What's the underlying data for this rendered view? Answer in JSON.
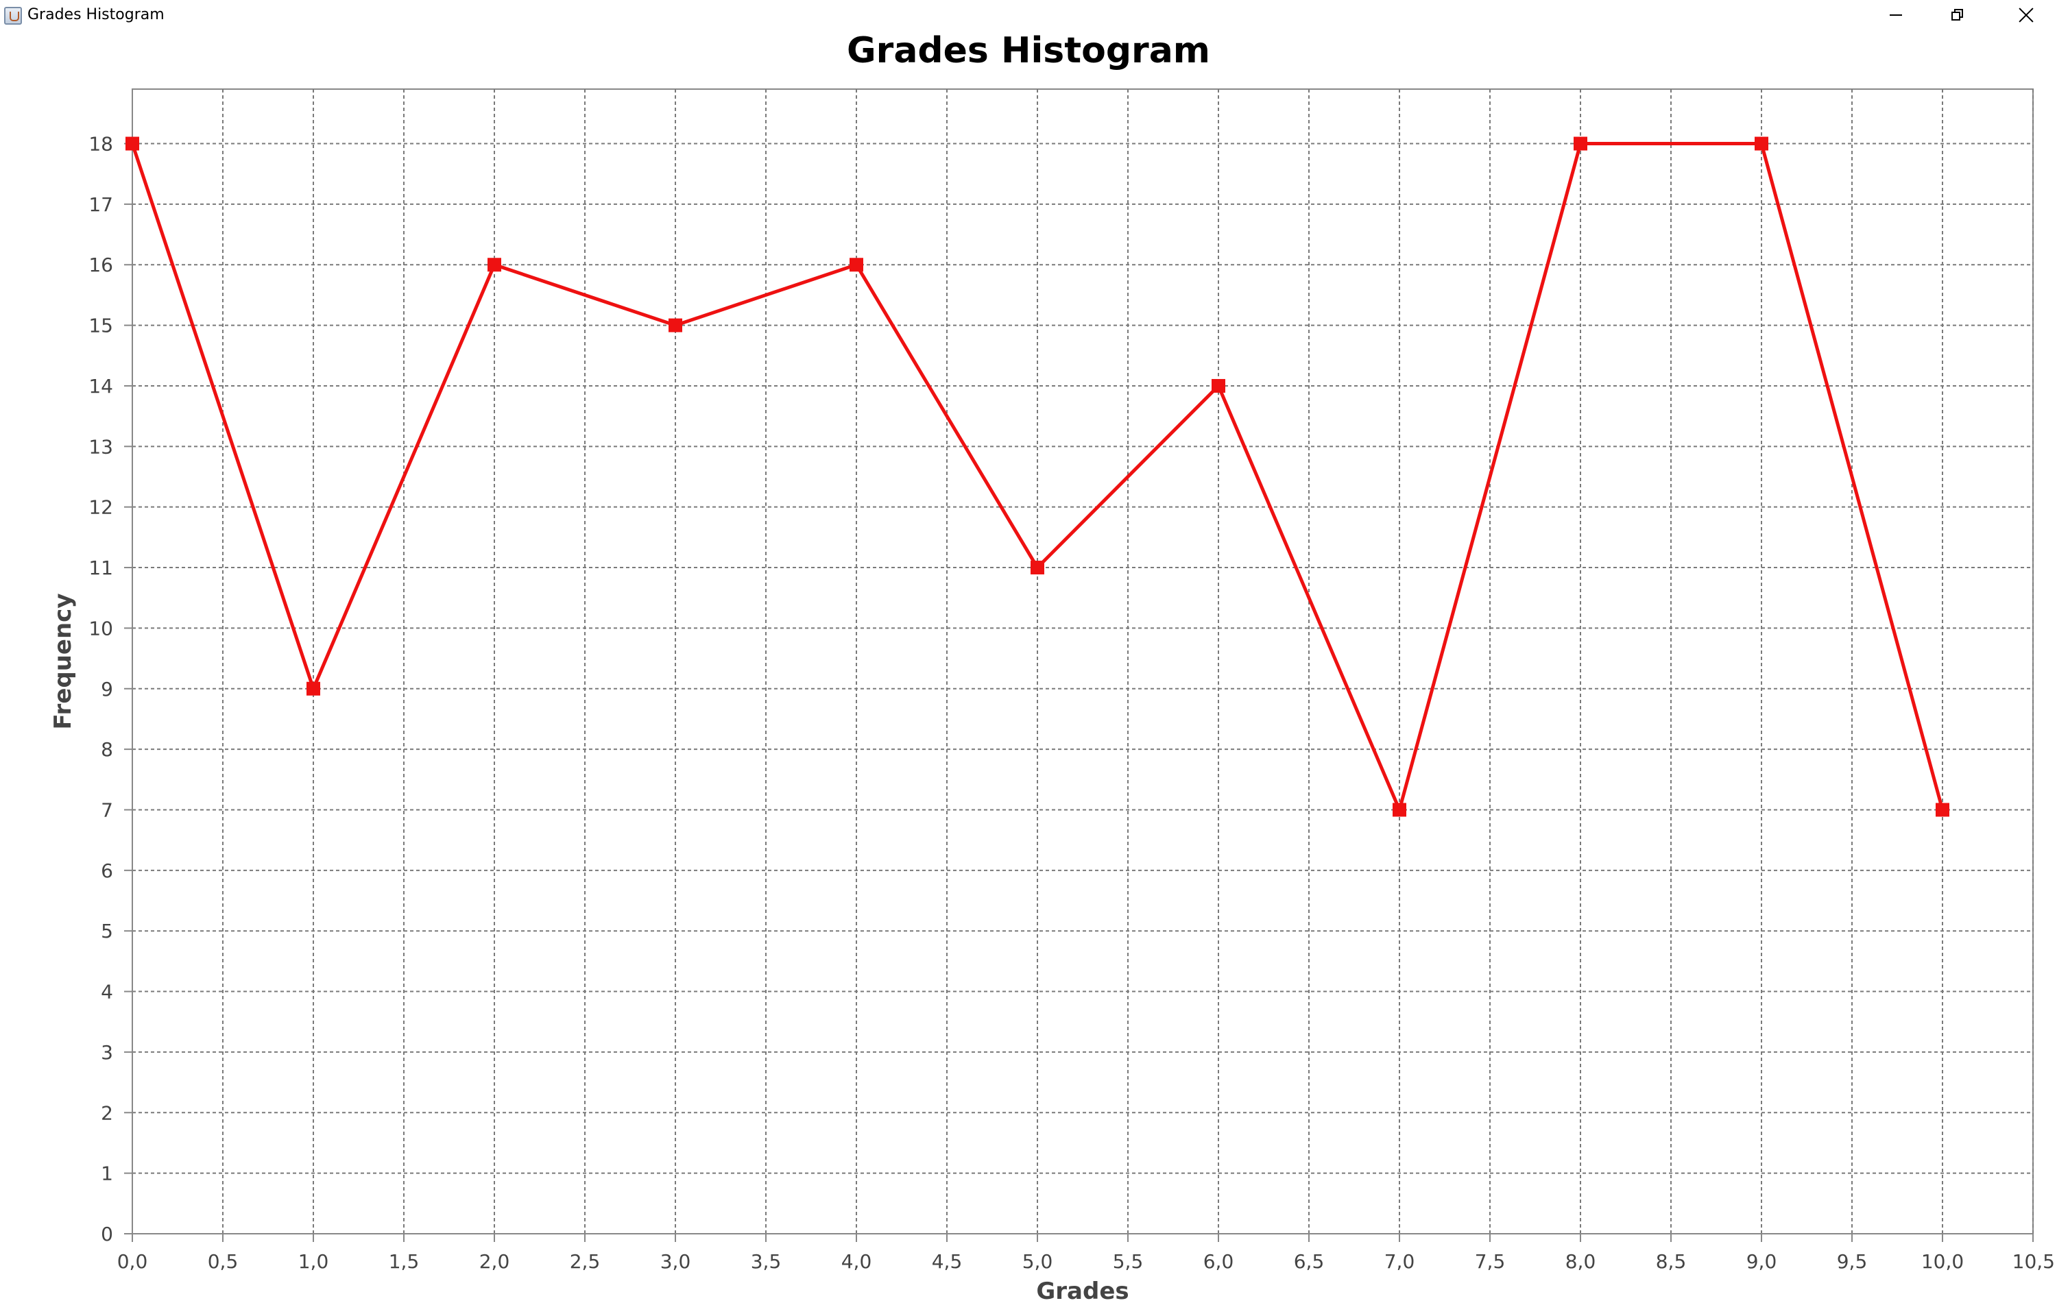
{
  "window": {
    "title": "Grades Histogram",
    "icon": "java-cup-icon",
    "controls": [
      "minimize-icon",
      "restore-icon",
      "close-icon"
    ]
  },
  "chart_data": {
    "type": "line",
    "title": "Grades Histogram",
    "xlabel": "Grades",
    "ylabel": "Frequency",
    "xlim": [
      0,
      10.5
    ],
    "ylim": [
      0,
      18.9
    ],
    "x_ticks": [
      "0,0",
      "0,5",
      "1,0",
      "1,5",
      "2,0",
      "2,5",
      "3,0",
      "3,5",
      "4,0",
      "4,5",
      "5,0",
      "5,5",
      "6,0",
      "6,5",
      "7,0",
      "7,5",
      "8,0",
      "8,5",
      "9,0",
      "9,5",
      "10,0",
      "10,5"
    ],
    "y_ticks": [
      "0",
      "1",
      "2",
      "3",
      "4",
      "5",
      "6",
      "7",
      "8",
      "9",
      "10",
      "11",
      "12",
      "13",
      "14",
      "15",
      "16",
      "17",
      "18"
    ],
    "grid": true,
    "legend": "none",
    "series": [
      {
        "color": "#ee1111",
        "marker": "square",
        "x": [
          0,
          1,
          2,
          3,
          4,
          5,
          6,
          7,
          8,
          9,
          10
        ],
        "y": [
          18,
          9,
          16,
          15,
          16,
          11,
          14,
          7,
          18,
          18,
          7
        ]
      }
    ]
  }
}
